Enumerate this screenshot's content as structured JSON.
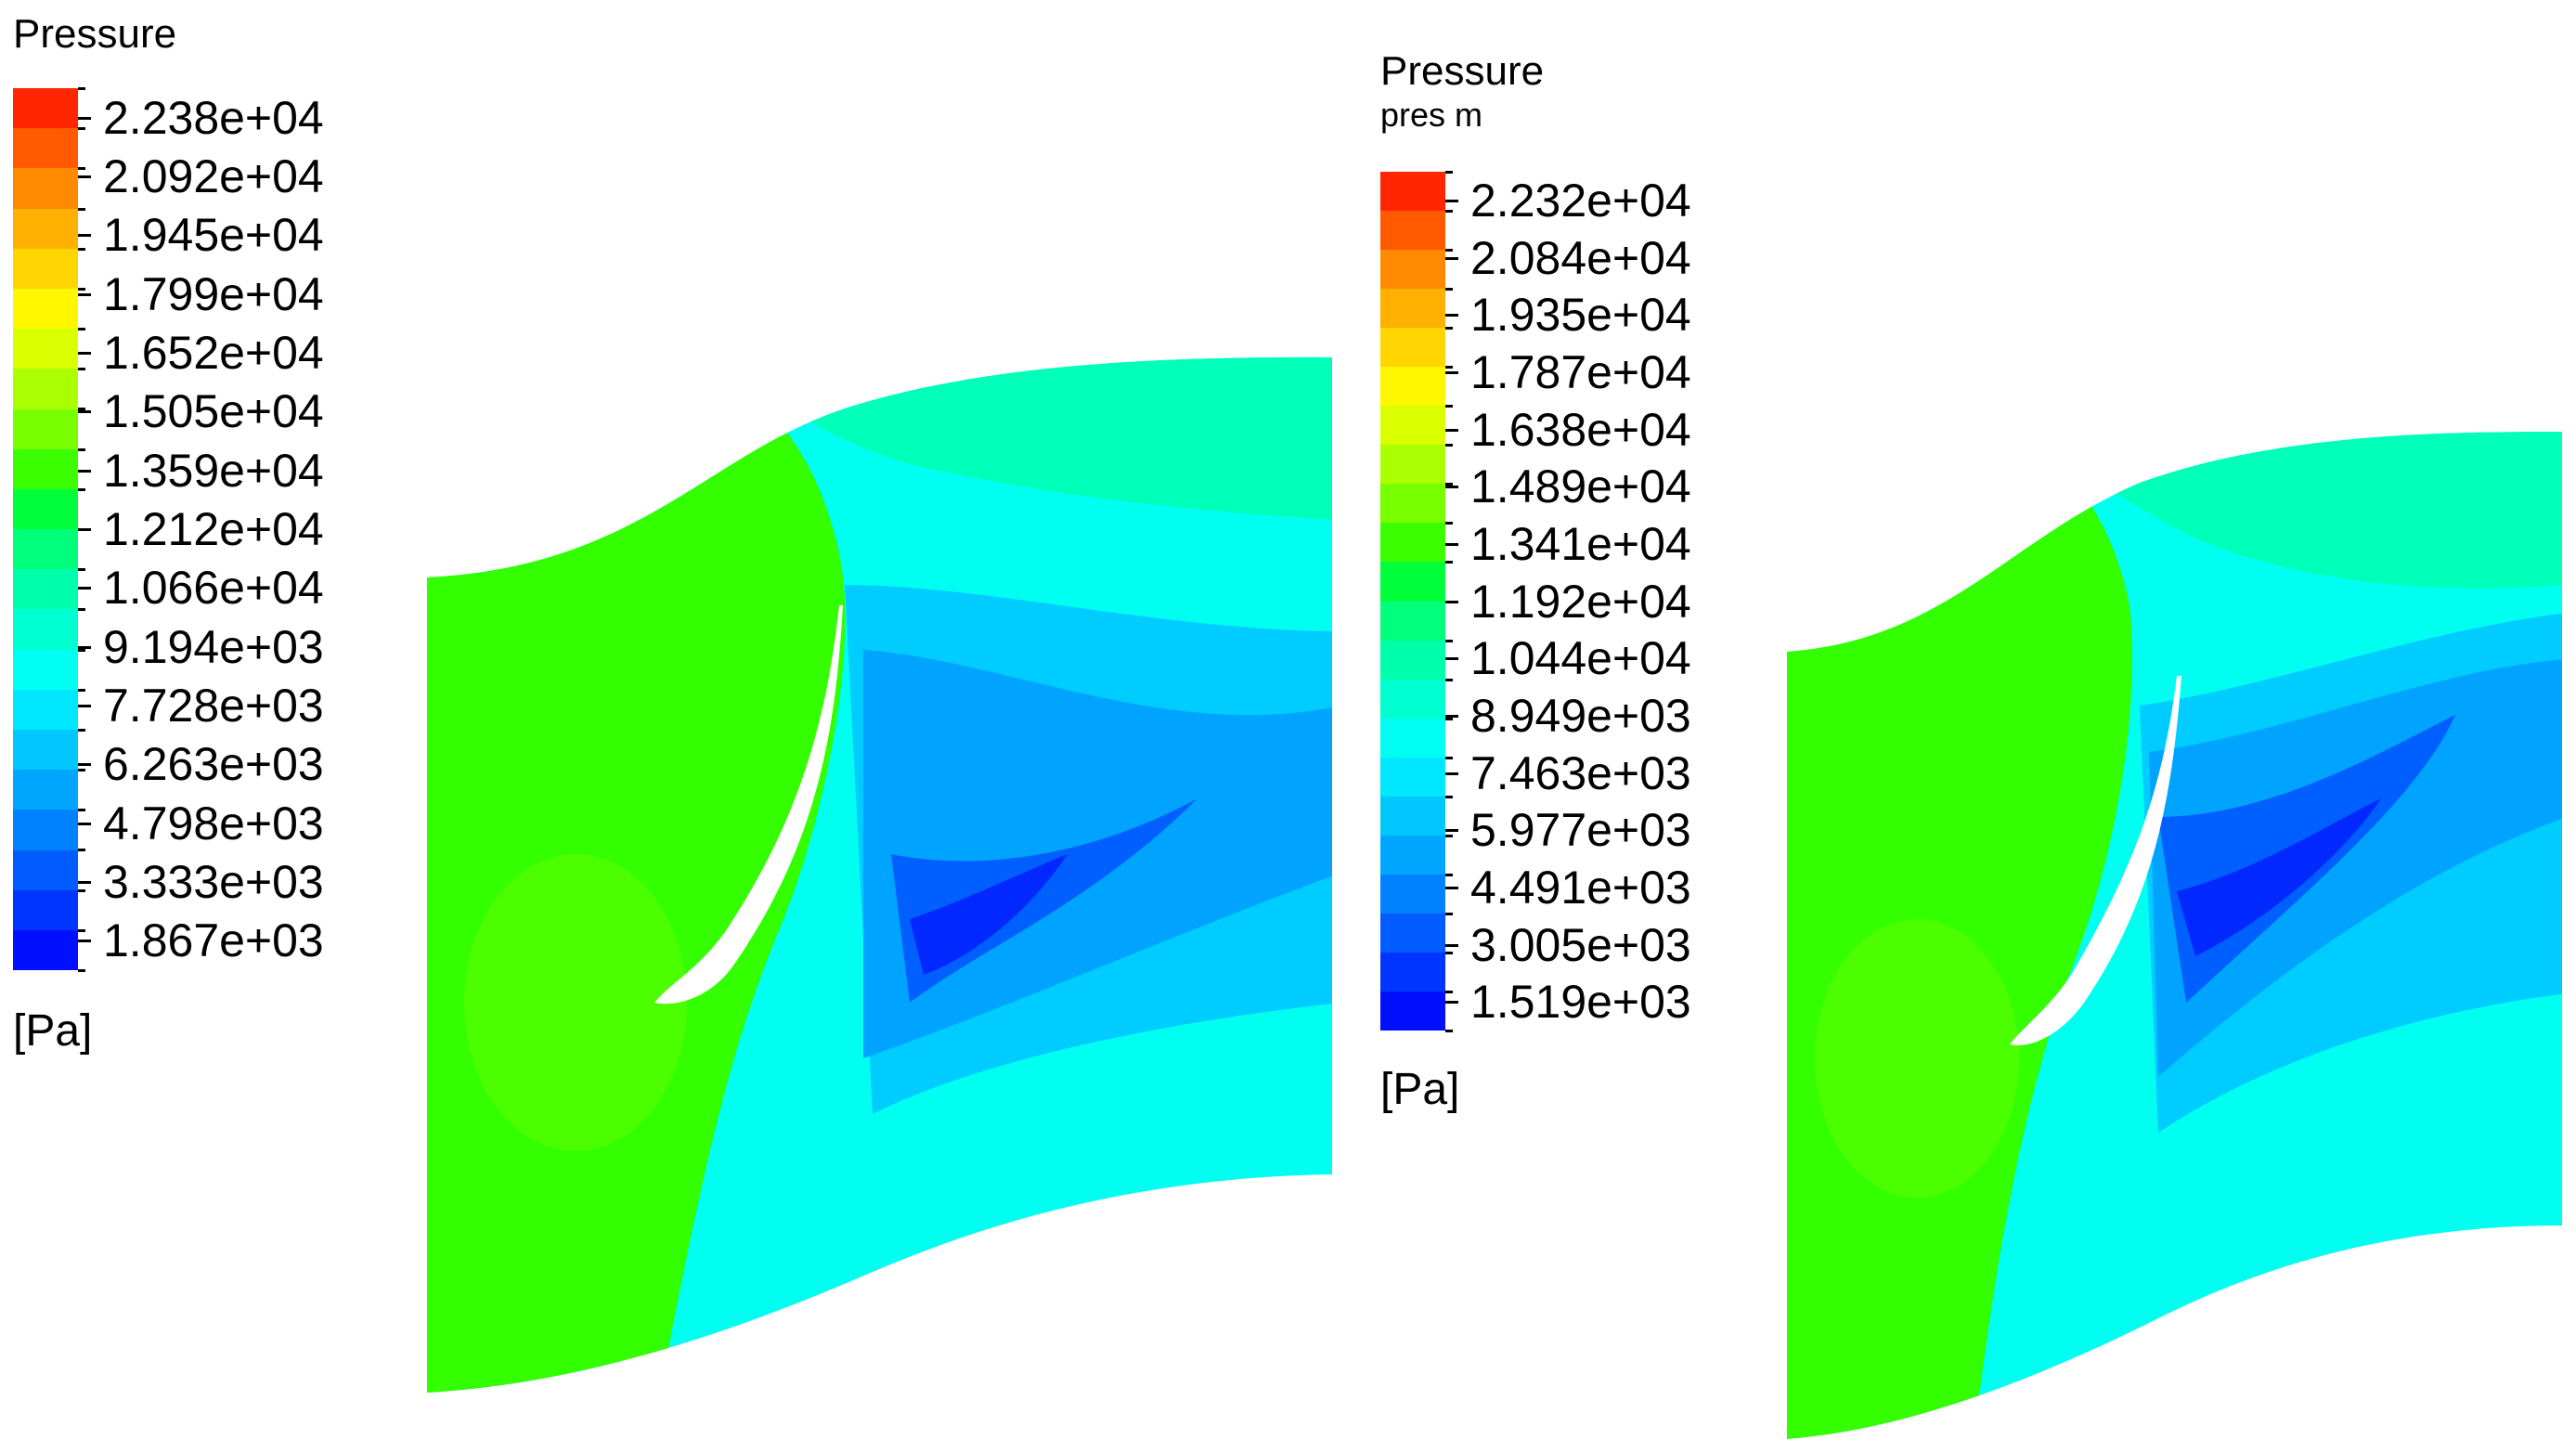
{
  "legends": [
    {
      "title": "Pressure",
      "subtitle": "",
      "unit": "[Pa]",
      "labels": [
        "2.238e+04",
        "2.092e+04",
        "1.945e+04",
        "1.799e+04",
        "1.652e+04",
        "1.505e+04",
        "1.359e+04",
        "1.212e+04",
        "1.066e+04",
        "9.194e+03",
        "7.728e+03",
        "6.263e+03",
        "4.798e+03",
        "3.333e+03",
        "1.867e+03"
      ]
    },
    {
      "title": "Pressure",
      "subtitle": "pres m",
      "unit": "[Pa]",
      "labels": [
        "2.232e+04",
        "2.084e+04",
        "1.935e+04",
        "1.787e+04",
        "1.638e+04",
        "1.489e+04",
        "1.341e+04",
        "1.192e+04",
        "1.044e+04",
        "8.949e+03",
        "7.463e+03",
        "5.977e+03",
        "4.491e+03",
        "3.005e+03",
        "1.519e+03"
      ]
    }
  ],
  "colormap": [
    "#ff2600",
    "#ff5a00",
    "#ff8a00",
    "#ffb000",
    "#ffd500",
    "#fff700",
    "#d9ff00",
    "#aaff00",
    "#78ff00",
    "#3bff00",
    "#00ff3a",
    "#00ff7a",
    "#00ffab",
    "#00ffd0",
    "#00fff3",
    "#00e8ff",
    "#00c8ff",
    "#00a6ff",
    "#0082ff",
    "#005cff",
    "#0035ff",
    "#0010ff"
  ],
  "field_colors": {
    "inlet": "#33ff00",
    "inlet_light": "#4cff00",
    "upper": "#00ffb8",
    "mid": "#00fff0",
    "light_blue": "#00ccff",
    "blue": "#00a4ff",
    "dark_blue": "#0060ff",
    "deep_blue": "#0028ff",
    "blade": "#ffffff"
  }
}
